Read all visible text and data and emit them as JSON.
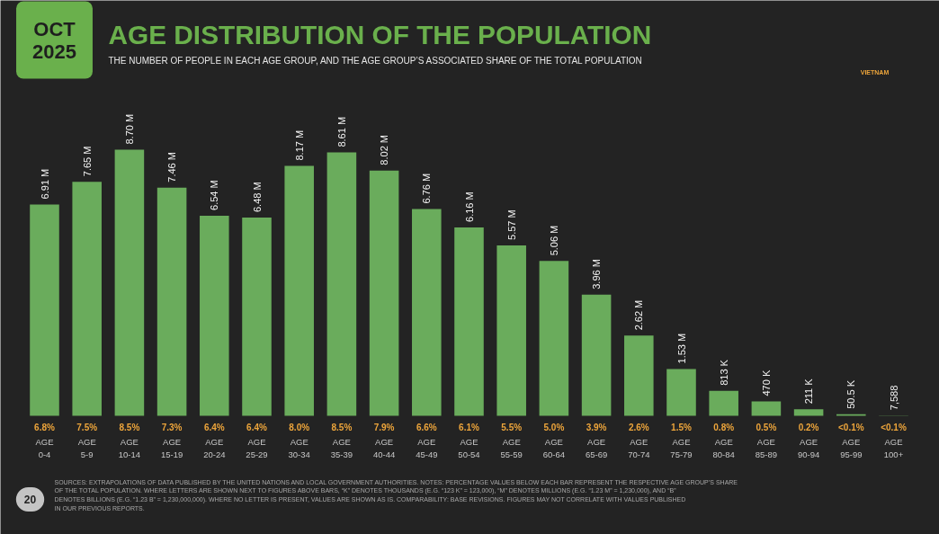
{
  "chart_data": {
    "type": "bar",
    "title": "AGE DISTRIBUTION OF THE POPULATION",
    "subtitle": "THE NUMBER OF PEOPLE IN EACH AGE GROUP, AND THE AGE GROUP’S ASSOCIATED SHARE OF THE TOTAL POPULATION",
    "categories": [
      "AGE 0-4",
      "AGE 5-9",
      "AGE 10-14",
      "AGE 15-19",
      "AGE 20-24",
      "AGE 25-29",
      "AGE 30-34",
      "AGE 35-39",
      "AGE 40-44",
      "AGE 45-49",
      "AGE 50-54",
      "AGE 55-59",
      "AGE 60-64",
      "AGE 65-69",
      "AGE 70-74",
      "AGE 75-79",
      "AGE 80-84",
      "AGE 85-89",
      "AGE 90-94",
      "AGE 95-99",
      "AGE 100+"
    ],
    "values": [
      6910000,
      7650000,
      8700000,
      7460000,
      6540000,
      6480000,
      8170000,
      8610000,
      8020000,
      6760000,
      6160000,
      5570000,
      5060000,
      3960000,
      2620000,
      1530000,
      813000,
      470000,
      211000,
      50500,
      7588
    ],
    "value_labels": [
      "6.91 M",
      "7.65 M",
      "8.70 M",
      "7.46 M",
      "6.54 M",
      "6.48 M",
      "8.17 M",
      "8.61 M",
      "8.02 M",
      "6.76 M",
      "6.16 M",
      "5.57 M",
      "5.06 M",
      "3.96 M",
      "2.62 M",
      "1.53 M",
      "813 K",
      "470 K",
      "211 K",
      "50.5 K",
      "7,588"
    ],
    "color": "#6aac5c",
    "annotations": [
      "OCT 2025",
      "VIETNAM",
      "SOURCES: EXTRAPOLATIONS OF DATA PUBLISHED BY THE UNITED NATIONS AND LOCAL GOVERNMENT AUTHORITIES. NOTES: PERCENTAGE VALUES BELOW EACH BAR REPRESENT THE RESPECTIVE AGE GROUP’S SHARE OF THE TOTAL POPULATION. WHERE LETTERS ARE SHOWN NEXT TO FIGURES ABOVE BARS, “K” DENOTES THOUSANDS (E.G. “123 K” = 123,000), “M” DENOTES MILLIONS (E.G. “1.23 M” = 1,230,000), AND “B” DENOTES BILLIONS (E.G. “1.23 B” = 1,230,000,000). WHERE NO LETTER IS PRESENT, VALUES ARE SHOWN AS IS. COMPARABILITY: BASE REVISIONS. FIGURES MAY NOT CORRELATE WITH VALUES PUBLISHED IN OUR PREVIOUS REPORTS.",
      "20",
      "6.8%",
      "7.5%",
      "8.5%",
      "7.3%",
      "6.4%",
      "6.4%",
      "8.0%",
      "8.5%",
      "7.9%",
      "6.6%",
      "6.1%",
      "5.5%",
      "5.0%",
      "3.9%",
      "2.6%",
      "1.5%",
      "0.8%",
      "0.5%",
      "0.2%",
      "<0.1%",
      "<0.1%"
    ]
  }
}
